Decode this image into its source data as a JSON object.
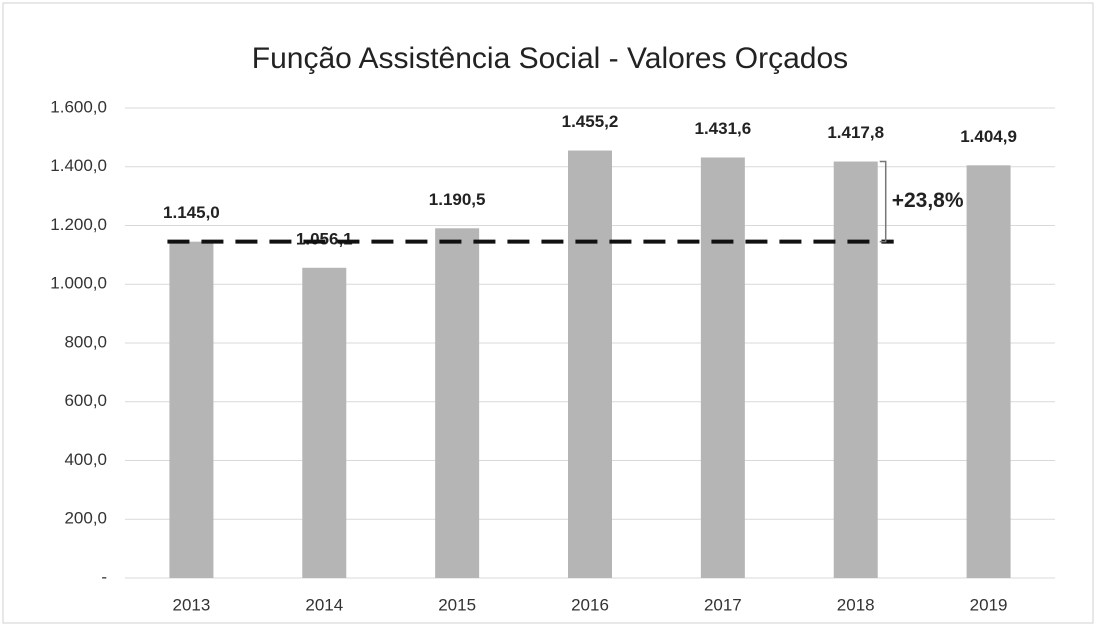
{
  "chart_data": {
    "type": "bar",
    "title": "Função Assistência Social - Valores Orçados",
    "categories": [
      "2013",
      "2014",
      "2015",
      "2016",
      "2017",
      "2018",
      "2019"
    ],
    "values": [
      1145.0,
      1056.1,
      1190.5,
      1455.2,
      1431.6,
      1417.8,
      1404.9
    ],
    "value_labels": [
      "1.145,0",
      "1.056,1",
      "1.190,5",
      "1.455,2",
      "1.431,6",
      "1.417,8",
      "1.404,9"
    ],
    "color": "#b5b5b5",
    "ylim": [
      0,
      1600
    ],
    "yticks": [
      {
        "value": 0,
        "label": "-"
      },
      {
        "value": 200,
        "label": "200,0"
      },
      {
        "value": 400,
        "label": "400,0"
      },
      {
        "value": 600,
        "label": "600,0"
      },
      {
        "value": 800,
        "label": "800,0"
      },
      {
        "value": 1000,
        "label": "1.000,0"
      },
      {
        "value": 1200,
        "label": "1.200,0"
      },
      {
        "value": 1400,
        "label": "1.400,0"
      },
      {
        "value": 1600,
        "label": "1.600,0"
      }
    ],
    "grid": true,
    "reference_line": {
      "value": 1145.0,
      "color": "#111111"
    },
    "annotation": {
      "text": "+23,8%"
    }
  }
}
